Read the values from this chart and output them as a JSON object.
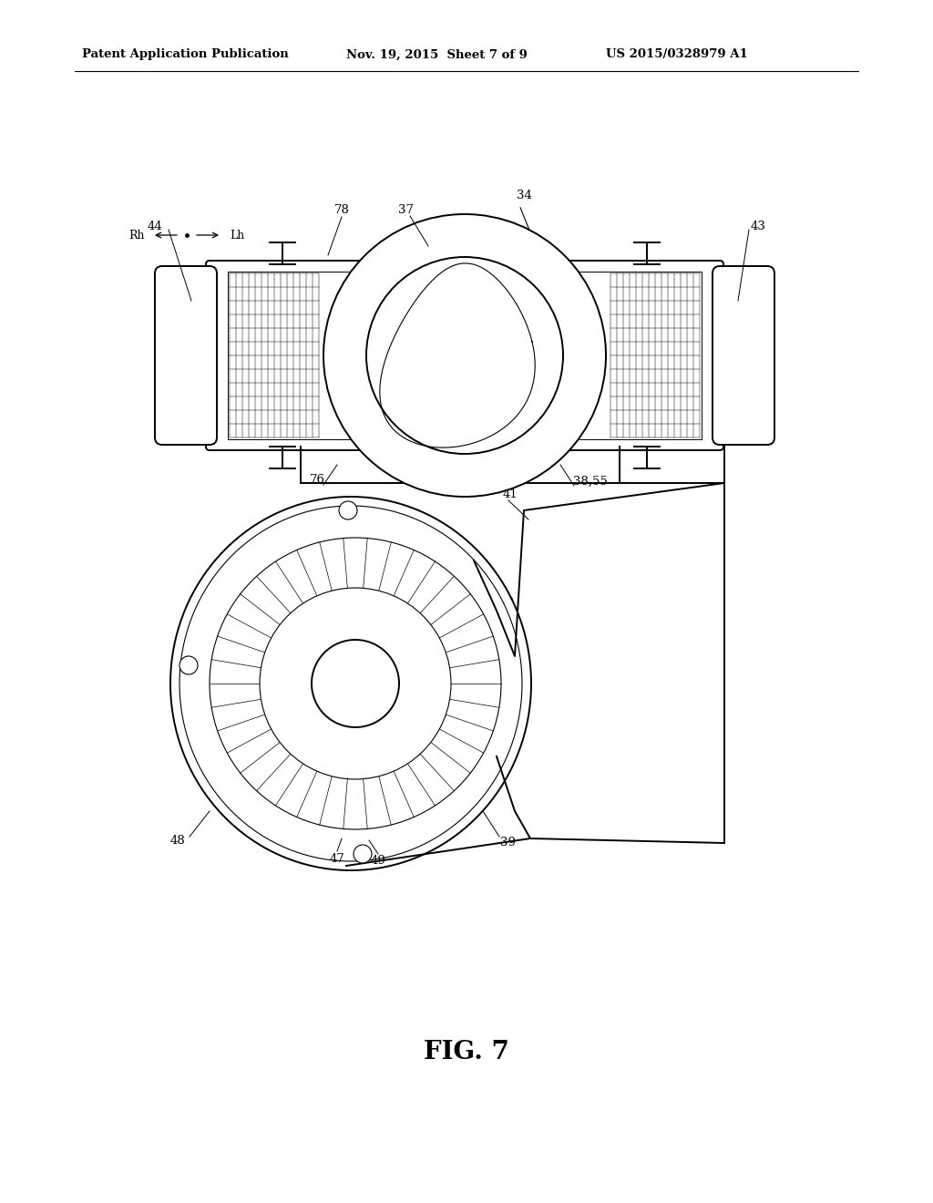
{
  "bg_color": "#ffffff",
  "line_color": "#000000",
  "fig_width": 10.24,
  "fig_height": 13.2,
  "header_text": "Patent Application Publication",
  "header_date": "Nov. 19, 2015  Sheet 7 of 9",
  "header_patent": "US 2015/0328979 A1",
  "fig_label": "FIG. 7"
}
